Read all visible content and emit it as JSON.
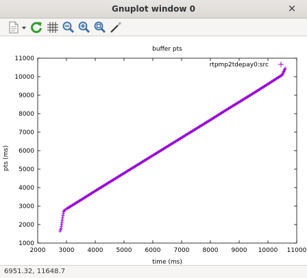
{
  "window": {
    "title": "Gnuplot window 0",
    "close_glyph": "×"
  },
  "toolbar": {
    "buttons": [
      {
        "name": "copy-to-clipboard-icon"
      },
      {
        "name": "dropdown-arrow-icon"
      },
      {
        "name": "replot-icon"
      },
      {
        "name": "grid-icon"
      },
      {
        "name": "zoom-previous-icon"
      },
      {
        "name": "zoom-next-icon"
      },
      {
        "name": "autoscale-icon"
      },
      {
        "name": "configure-icon"
      }
    ]
  },
  "status": {
    "coords": "6951.32, 11648.7"
  },
  "chart_data": {
    "type": "scatter",
    "title": "buffer pts",
    "xlabel": "time (ms)",
    "ylabel": "pts (ms)",
    "xlim": [
      2000,
      11000
    ],
    "ylim": [
      1000,
      11000
    ],
    "xticks": [
      2000,
      3000,
      4000,
      5000,
      6000,
      7000,
      8000,
      9000,
      10000,
      11000
    ],
    "yticks": [
      1000,
      2000,
      3000,
      4000,
      5000,
      6000,
      7000,
      8000,
      9000,
      10000,
      11000
    ],
    "legend": {
      "entry": "rtpmp2tdepay0:src",
      "position": "top-right"
    },
    "marker": "+",
    "color": "#9400d3",
    "series": [
      {
        "name": "rtpmp2tdepay0:src",
        "points": [
          [
            2780,
            1650
          ],
          [
            2800,
            1720
          ],
          [
            2810,
            1800
          ],
          [
            2820,
            1900
          ],
          [
            2830,
            2000
          ],
          [
            2840,
            2100
          ],
          [
            2850,
            2200
          ],
          [
            2860,
            2300
          ],
          [
            2870,
            2400
          ],
          [
            2880,
            2500
          ],
          [
            2890,
            2600
          ],
          [
            2900,
            2700
          ],
          [
            2950,
            2800
          ],
          [
            3000,
            2850
          ],
          [
            3500,
            3330
          ],
          [
            4000,
            3820
          ],
          [
            4500,
            4300
          ],
          [
            5000,
            4780
          ],
          [
            5500,
            5260
          ],
          [
            6000,
            5740
          ],
          [
            6500,
            6220
          ],
          [
            7000,
            6700
          ],
          [
            7500,
            7180
          ],
          [
            8000,
            7660
          ],
          [
            8500,
            8150
          ],
          [
            9000,
            8630
          ],
          [
            9500,
            9110
          ],
          [
            10000,
            9600
          ],
          [
            10500,
            10100
          ],
          [
            10600,
            10450
          ]
        ]
      }
    ]
  }
}
